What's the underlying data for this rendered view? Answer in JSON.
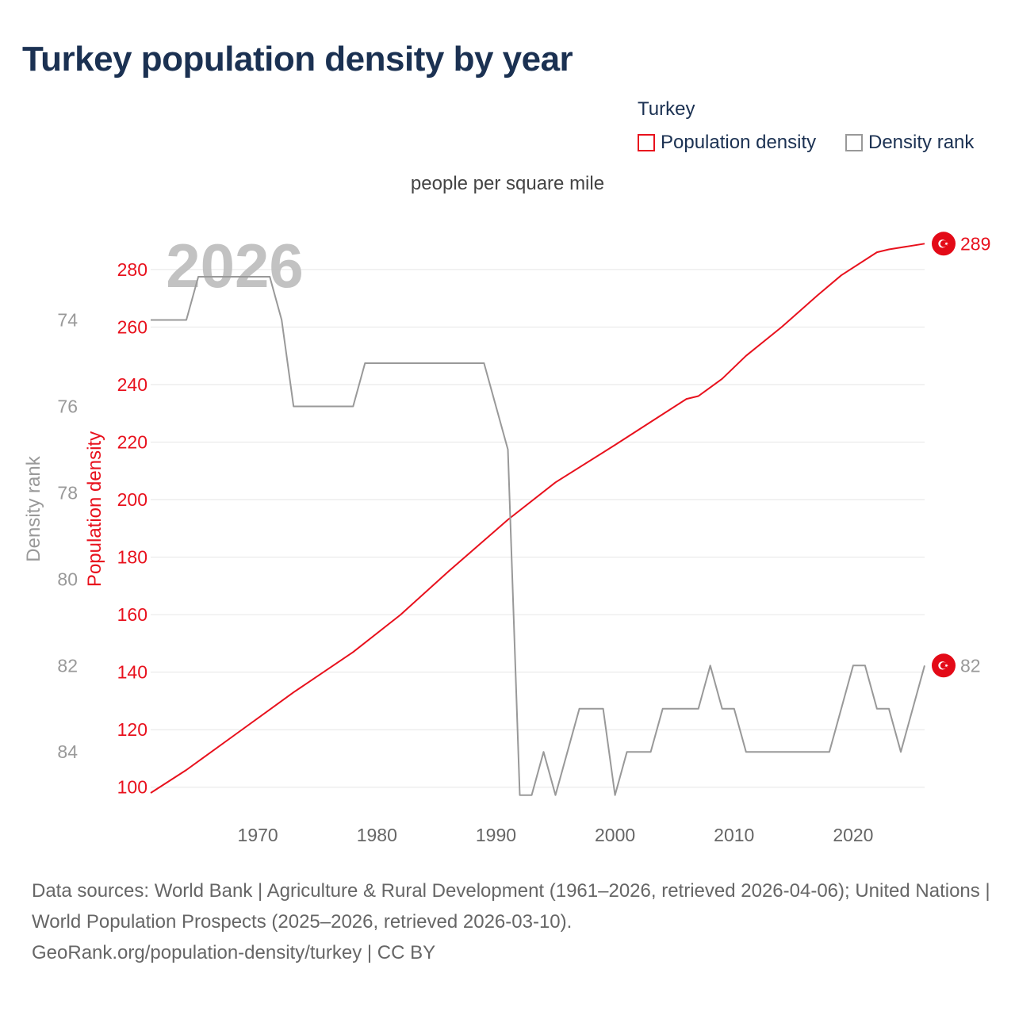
{
  "title": "Turkey population density by year",
  "legend": {
    "country": "Turkey",
    "density_label": "Population density",
    "rank_label": "Density rank"
  },
  "unit_label": "people per square mile",
  "watermark_year": "2026",
  "source": {
    "line1": "Data sources: World Bank | Agriculture & Rural Development (1961–2026, retrieved 2026-04-06); United Nations | World Population Prospects (2025–2026, retrieved 2026-03-10).",
    "line2": "GeoRank.org/population-density/turkey | CC BY"
  },
  "colors": {
    "density": "#e8111d",
    "rank": "#999999",
    "grid": "#e6e6e6",
    "title": "#1b3152"
  },
  "chart_data": {
    "type": "line",
    "title": "Turkey population density by year",
    "xlabel": "",
    "xlim": [
      1961,
      2026
    ],
    "x_ticks": [
      1970,
      1980,
      1990,
      2000,
      2010,
      2020
    ],
    "y_left_label": "Population density",
    "y_left_lim": [
      98,
      291
    ],
    "y_left_ticks": [
      100,
      120,
      140,
      160,
      180,
      200,
      220,
      240,
      260,
      280
    ],
    "y_rank_label": "Density rank",
    "y_rank_lim": [
      84.95,
      72.1
    ],
    "y_rank_ticks": [
      74,
      76,
      78,
      80,
      82,
      84
    ],
    "series": [
      {
        "name": "Population density",
        "axis": "left",
        "end_label": "289",
        "points": [
          [
            1961,
            98
          ],
          [
            1964,
            106
          ],
          [
            1968,
            118
          ],
          [
            1973,
            133
          ],
          [
            1978,
            147
          ],
          [
            1982,
            160
          ],
          [
            1986,
            175
          ],
          [
            1991,
            193
          ],
          [
            1995,
            206
          ],
          [
            2000,
            219
          ],
          [
            2003,
            227
          ],
          [
            2006,
            235
          ],
          [
            2007,
            236
          ],
          [
            2009,
            242
          ],
          [
            2011,
            250
          ],
          [
            2014,
            260
          ],
          [
            2017,
            271
          ],
          [
            2019,
            278
          ],
          [
            2022,
            286
          ],
          [
            2023,
            287
          ],
          [
            2026,
            289
          ]
        ]
      },
      {
        "name": "Density rank",
        "axis": "rank",
        "end_label": "82",
        "points": [
          [
            1961,
            74
          ],
          [
            1964,
            74
          ],
          [
            1965,
            73
          ],
          [
            1971,
            73
          ],
          [
            1972,
            74
          ],
          [
            1973,
            76
          ],
          [
            1978,
            76
          ],
          [
            1979,
            75
          ],
          [
            1989,
            75
          ],
          [
            1991,
            77
          ],
          [
            1992,
            85
          ],
          [
            1993,
            85
          ],
          [
            1994,
            84
          ],
          [
            1995,
            85
          ],
          [
            1997,
            83
          ],
          [
            1999,
            83
          ],
          [
            2000,
            85
          ],
          [
            2001,
            84
          ],
          [
            2003,
            84
          ],
          [
            2004,
            83
          ],
          [
            2007,
            83
          ],
          [
            2008,
            82
          ],
          [
            2009,
            83
          ],
          [
            2010,
            83
          ],
          [
            2011,
            84
          ],
          [
            2018,
            84
          ],
          [
            2020,
            82
          ],
          [
            2021,
            82
          ],
          [
            2022,
            83
          ],
          [
            2023,
            83
          ],
          [
            2024,
            84
          ],
          [
            2026,
            82
          ]
        ]
      }
    ]
  }
}
